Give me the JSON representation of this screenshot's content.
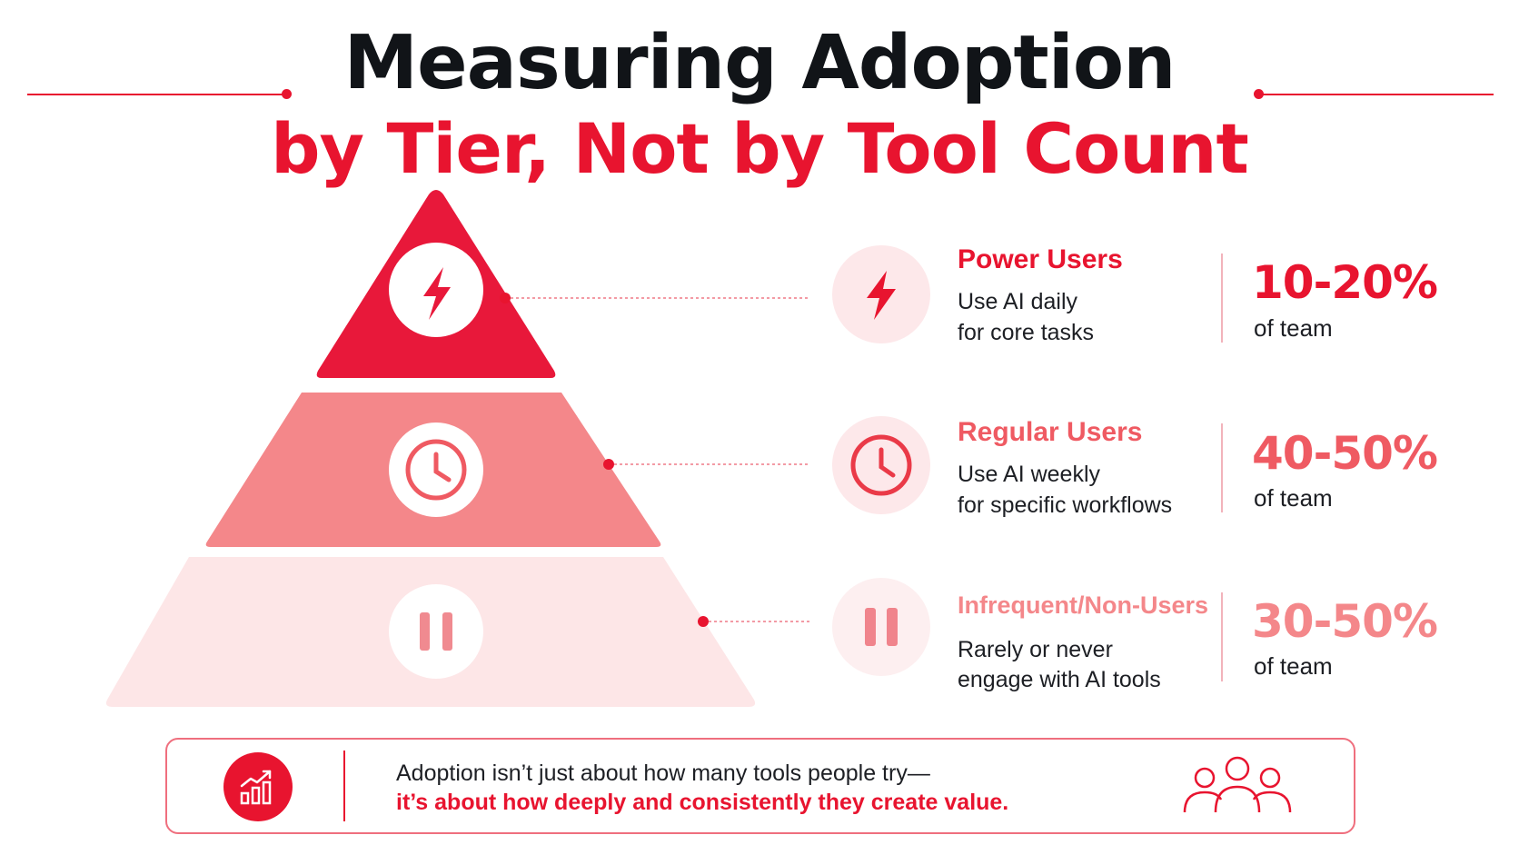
{
  "title": {
    "line1": "Measuring Adoption",
    "line2": "by Tier, Not by Tool Count"
  },
  "colors": {
    "brand_red": "#e8142f",
    "tier_top": "#e8183a",
    "tier_middle": "#f4878a",
    "tier_bottom": "#fde6e7",
    "dark_text": "#111418"
  },
  "tiers": [
    {
      "name": "Power Users",
      "desc_line1": "Use AI daily",
      "desc_line2": "for core tasks",
      "percent": "10-20%",
      "percent_sub": "of team",
      "icon": "lightning-bolt-icon"
    },
    {
      "name": "Regular Users",
      "desc_line1": "Use AI weekly",
      "desc_line2": "for specific workflows",
      "percent": "40-50%",
      "percent_sub": "of team",
      "icon": "clock-icon"
    },
    {
      "name": "Infrequent/Non-Users",
      "desc_line1": "Rarely or never",
      "desc_line2": "engage with AI tools",
      "percent": "30-50%",
      "percent_sub": "of team",
      "icon": "pause-icon"
    }
  ],
  "footer": {
    "line1": "Adoption isn’t just about how many tools people try—",
    "line2": "it’s about how deeply and consistently  they create value.",
    "left_icon": "growth-chart-icon",
    "right_icon": "people-group-icon"
  }
}
